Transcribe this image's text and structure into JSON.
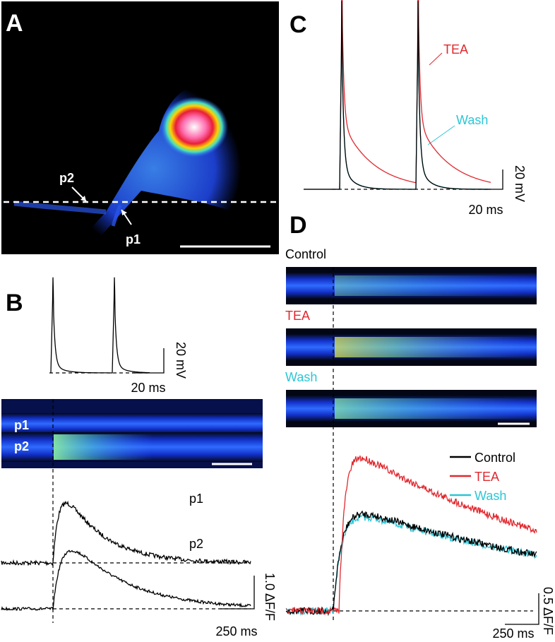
{
  "panels": {
    "A": {
      "label": "A",
      "markers": [
        "p2",
        "p1"
      ]
    },
    "B": {
      "label": "B",
      "voltage_scale": {
        "y": "20 mV",
        "x": "20 ms"
      },
      "image_rows": [
        "p1",
        "p2"
      ],
      "trace_labels": [
        "p1",
        "p2"
      ],
      "trace_scale": {
        "y": "1.0 ΔF/F",
        "x": "250 ms"
      }
    },
    "C": {
      "label": "C",
      "trace_labels": [
        {
          "text": "TEA",
          "color": "#e0282e"
        },
        {
          "text": "Wash",
          "color": "#2cc6d6"
        }
      ],
      "scale": {
        "y": "20 mV",
        "x": "20 ms"
      }
    },
    "D": {
      "label": "D",
      "image_labels": [
        {
          "text": "Control",
          "color": "#000000"
        },
        {
          "text": "TEA",
          "color": "#e0282e"
        },
        {
          "text": "Wash",
          "color": "#2cc6d6"
        }
      ],
      "legend": [
        {
          "name": "Control",
          "color": "#000000"
        },
        {
          "name": "TEA",
          "color": "#e0282e"
        },
        {
          "name": "Wash",
          "color": "#2cc6d6"
        }
      ],
      "scale": {
        "y": "0.5 ΔF/F",
        "x": "250 ms"
      }
    }
  }
}
